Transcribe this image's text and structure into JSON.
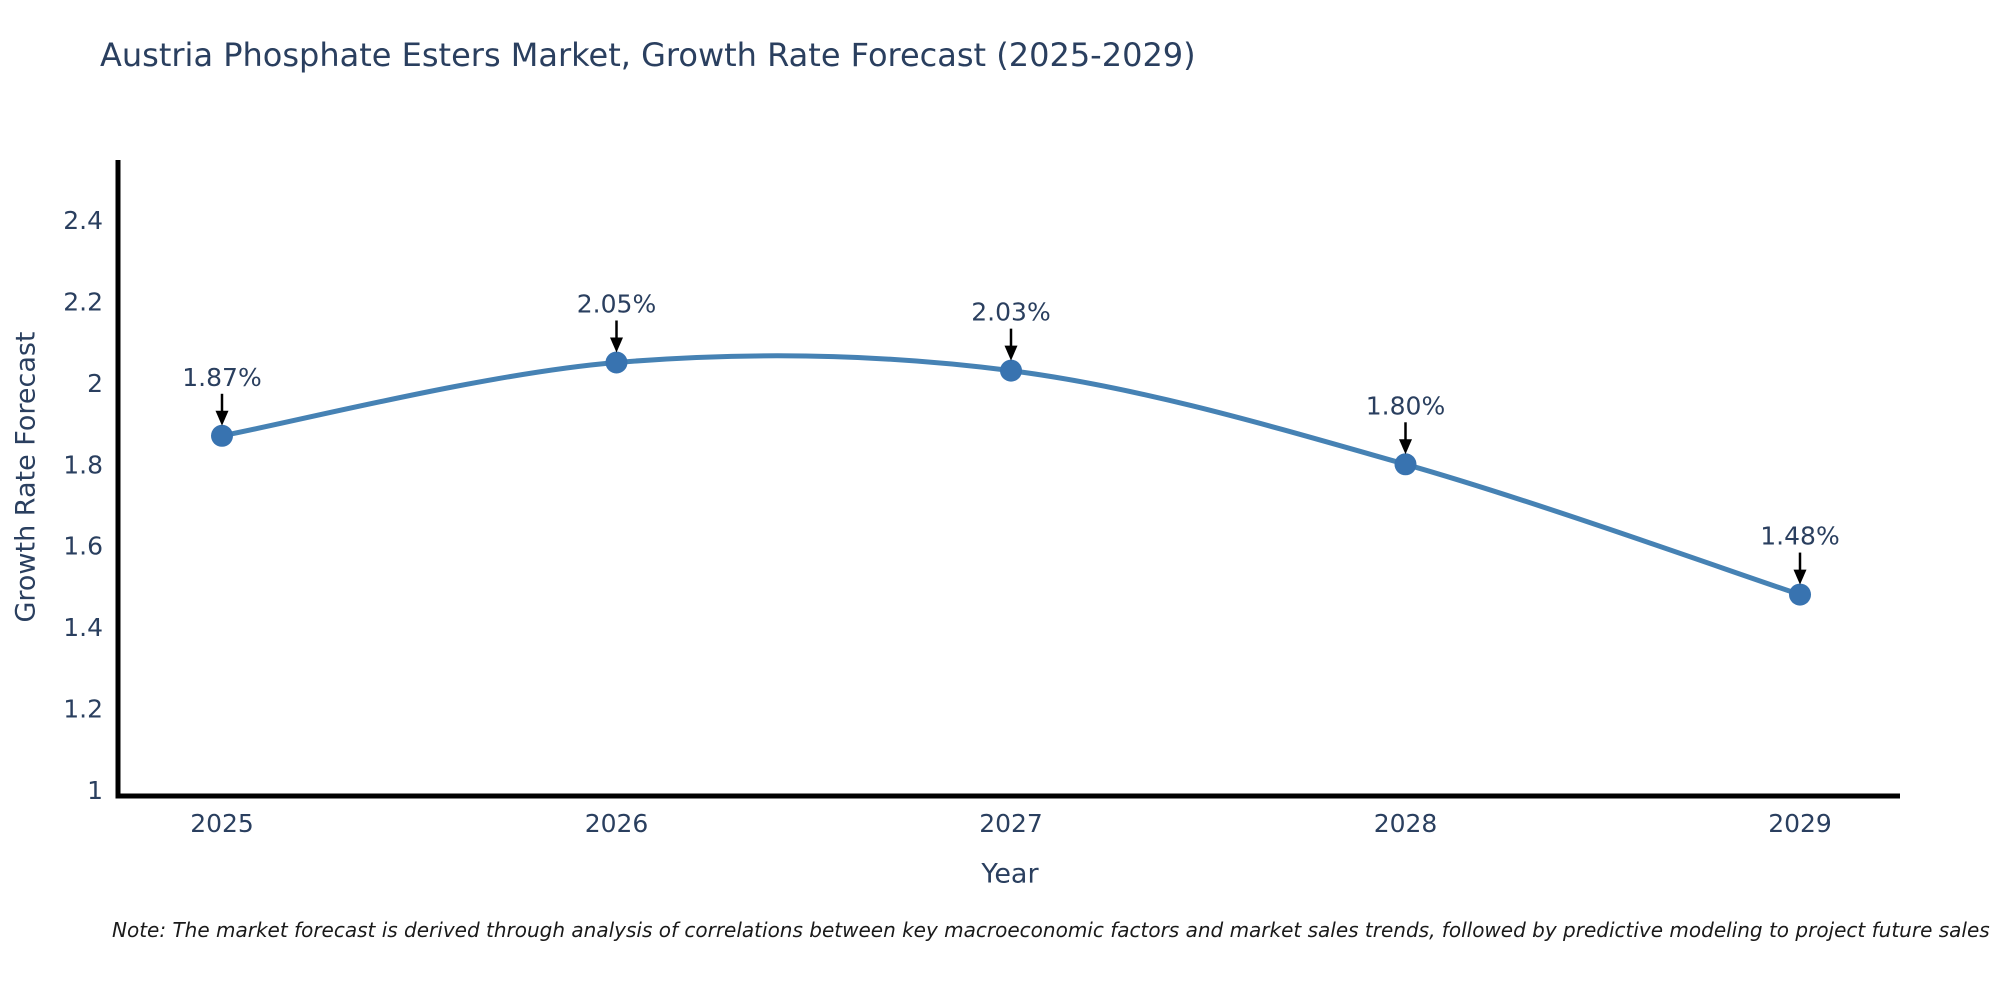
{
  "title": "Austria Phosphate Esters Market, Growth Rate Forecast (2025-2029)",
  "note": "Note: The market forecast is derived through analysis of correlations between key macroeconomic factors and market sales trends, followed by predictive modeling to project future sales",
  "chart_data": {
    "type": "line",
    "line_shape": "spline",
    "categories": [
      "2025",
      "2026",
      "2027",
      "2028",
      "2029"
    ],
    "x": [
      2025,
      2026,
      2027,
      2028,
      2029
    ],
    "values": [
      1.87,
      2.05,
      2.03,
      1.8,
      1.48
    ],
    "point_labels": [
      "1.87%",
      "2.05%",
      "2.03%",
      "1.80%",
      "1.48%"
    ],
    "title": "Austria Phosphate Esters Market, Growth Rate Forecast (2025-2029)",
    "xlabel": "Year",
    "ylabel": "Growth Rate Forecast",
    "ylim": [
      1,
      2.4
    ],
    "yticks": [
      1,
      1.2,
      1.4,
      1.6,
      1.8,
      2,
      2.2,
      2.4
    ],
    "ytick_labels": [
      "1",
      "1.2",
      "1.4",
      "1.6",
      "1.8",
      "2",
      "2.2",
      "2.4"
    ],
    "grid": false,
    "legend": "none",
    "colors": {
      "line": "#4682b4",
      "marker": "#3873b0",
      "axis": "#000000",
      "tick_text": "#2a3f5f",
      "annotation_text": "#2a3f5f",
      "annotation_arrow": "#000000",
      "title_text": "#2a3f5f",
      "note_text": "#1a1a1a",
      "background": "#ffffff"
    }
  }
}
